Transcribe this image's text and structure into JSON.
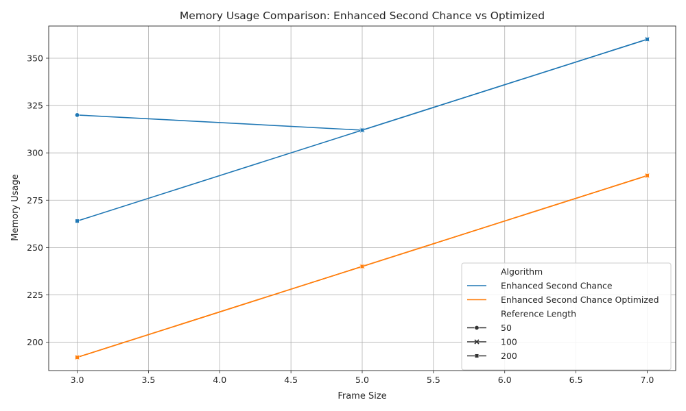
{
  "chart_data": {
    "type": "line",
    "title": "Memory Usage Comparison: Enhanced Second Chance vs Optimized",
    "xlabel": "Frame Size",
    "ylabel": "Memory Usage",
    "xlim": [
      2.8,
      7.2
    ],
    "ylim": [
      185,
      367
    ],
    "xticks": [
      3.0,
      3.5,
      4.0,
      4.5,
      5.0,
      5.5,
      6.0,
      6.5,
      7.0
    ],
    "xtick_labels": [
      "3.0",
      "3.5",
      "4.0",
      "4.5",
      "5.0",
      "5.5",
      "6.0",
      "6.5",
      "7.0"
    ],
    "yticks": [
      200,
      225,
      250,
      275,
      300,
      325,
      350
    ],
    "ytick_labels": [
      "200",
      "225",
      "250",
      "275",
      "300",
      "325",
      "350"
    ],
    "grid": true,
    "legend_position": "lower-right",
    "colors": {
      "Enhanced Second Chance": "#1f77b4",
      "Enhanced Second Chance Optimized": "#ff7f0e"
    },
    "series": [
      {
        "name": "Enhanced Second Chance",
        "reference_length": "50",
        "marker": "circle",
        "x": [
          3,
          5
        ],
        "y": [
          320,
          312
        ]
      },
      {
        "name": "Enhanced Second Chance",
        "reference_length": "100",
        "marker": "x",
        "x": [
          5,
          7
        ],
        "y": [
          312,
          360
        ]
      },
      {
        "name": "Enhanced Second Chance",
        "reference_length": "200",
        "marker": "square",
        "x": [
          3,
          5,
          7
        ],
        "y": [
          264,
          312,
          360
        ]
      },
      {
        "name": "Enhanced Second Chance Optimized",
        "reference_length": "50",
        "marker": "circle",
        "x": [
          3,
          5,
          7
        ],
        "y": [
          192,
          240,
          288
        ]
      },
      {
        "name": "Enhanced Second Chance Optimized",
        "reference_length": "100",
        "marker": "x",
        "x": [
          3,
          5,
          7
        ],
        "y": [
          192,
          240,
          288
        ]
      },
      {
        "name": "Enhanced Second Chance Optimized",
        "reference_length": "200",
        "marker": "square",
        "x": [
          3,
          5,
          7
        ],
        "y": [
          192,
          240,
          288
        ]
      }
    ],
    "legend": {
      "hue_title": "Algorithm",
      "hue_entries": [
        {
          "label": "Enhanced Second Chance",
          "color": "#1f77b4"
        },
        {
          "label": "Enhanced Second Chance Optimized",
          "color": "#ff7f0e"
        }
      ],
      "style_title": "Reference Length",
      "style_entries": [
        {
          "label": "50",
          "marker": "circle"
        },
        {
          "label": "100",
          "marker": "x"
        },
        {
          "label": "200",
          "marker": "square"
        }
      ]
    }
  }
}
